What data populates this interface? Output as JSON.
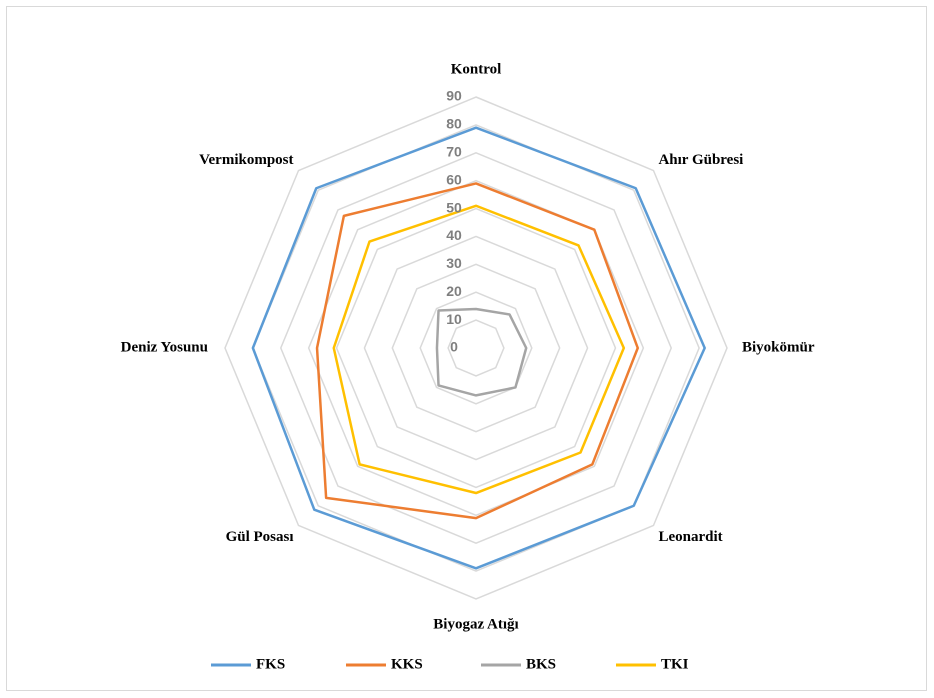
{
  "chart_data": {
    "type": "radar",
    "categories": [
      "Kontrol",
      "Ahır Gübresi",
      "Biyokömür",
      "Leonardit",
      "Biyogaz Atığı",
      "Gül Posası",
      "Deniz Yosunu",
      "Vermikompost"
    ],
    "series": [
      {
        "name": "FKS",
        "color": "#5b9bd5",
        "values": [
          79,
          81,
          82,
          80,
          79,
          82,
          80,
          81
        ]
      },
      {
        "name": "KKS",
        "color": "#ed7d31",
        "values": [
          59,
          60,
          58,
          59,
          61,
          76,
          57,
          67
        ]
      },
      {
        "name": "BKS",
        "color": "#a5a5a5",
        "values": [
          14,
          17,
          18,
          20,
          17,
          19,
          14,
          19
        ]
      },
      {
        "name": "TKI",
        "color": "#ffc000",
        "values": [
          51,
          52,
          53,
          53,
          52,
          59,
          51,
          54
        ]
      }
    ],
    "ylim": [
      0,
      90
    ],
    "yticks": [
      0,
      10,
      20,
      30,
      40,
      50,
      60,
      70,
      80,
      90
    ],
    "grid": true,
    "legend": "bottom"
  }
}
